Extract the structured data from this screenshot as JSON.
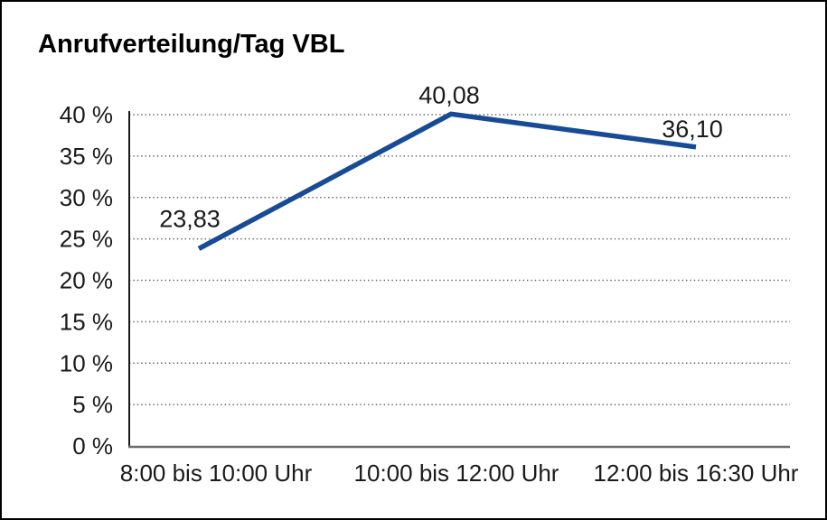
{
  "chart_data": {
    "type": "line",
    "title": "Anrufverteilung/Tag VBL",
    "categories": [
      "8:00 bis 10:00 Uhr",
      "10:00 bis 12:00 Uhr",
      "12:00 bis 16:30 Uhr"
    ],
    "values": [
      23.83,
      40.08,
      36.1
    ],
    "point_labels": [
      "23,83",
      "40,08",
      "36,10"
    ],
    "y_tick_labels": [
      "0 %",
      "5 %",
      "10 %",
      "15 %",
      "20 %",
      "25 %",
      "30 %",
      "35 %",
      "40 %"
    ],
    "xlabel": "",
    "ylabel": "",
    "ylim": [
      0,
      40
    ],
    "y_step": 5,
    "grid": "horizontal-dotted",
    "legend": "none"
  },
  "colors": {
    "line": "#174B96",
    "grid": "#646464",
    "y_axis": "#1A1A1A",
    "x_axis": "#6B6B6B",
    "text": "#1A1A1A",
    "border": "#000000",
    "background": "#FFFFFF"
  }
}
